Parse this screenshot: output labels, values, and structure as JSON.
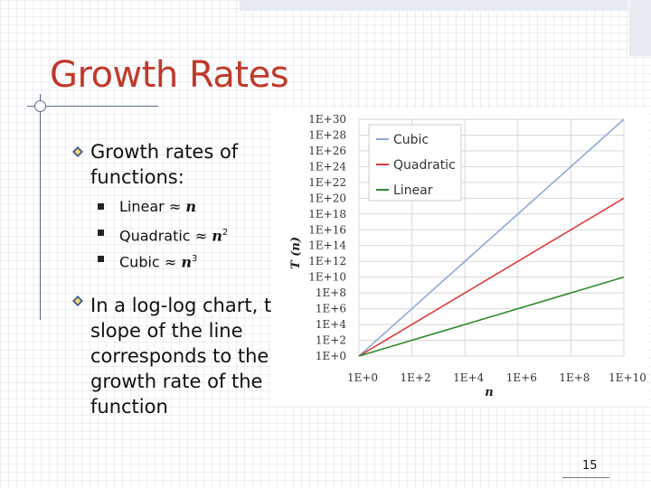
{
  "slide": {
    "title": "Growth Rates",
    "page_number": "15"
  },
  "bullets": [
    {
      "text_line1": "Growth rates of",
      "text_line2": "functions:"
    },
    {
      "text_lines": [
        "In a log-log chart, the",
        "slope of the line",
        "corresponds to the",
        "growth rate of the",
        "function"
      ]
    }
  ],
  "sub_items": [
    {
      "label": "Linear",
      "approx": "≈",
      "var": "n",
      "exp": ""
    },
    {
      "label": "Quadratic",
      "approx": "≈",
      "var": "n",
      "exp": "2"
    },
    {
      "label": "Cubic",
      "approx": "≈",
      "var": "n",
      "exp": "3"
    }
  ],
  "colors": {
    "title": "#c0392b",
    "cubic": "#8ea9db",
    "quadratic": "#e03a3a",
    "linear": "#2e8b2e",
    "bullet_icon": "#3c5a9a"
  },
  "chart_data": {
    "type": "line",
    "scale": "log-log",
    "xlabel": "n",
    "ylabel": "T (n)",
    "x_tick_labels": [
      "1E+0",
      "1E+2",
      "1E+4",
      "1E+6",
      "1E+8",
      "1E+10"
    ],
    "y_tick_labels": [
      "1E+0",
      "1E+2",
      "1E+4",
      "1E+6",
      "1E+8",
      "1E+10",
      "1E+12",
      "1E+14",
      "1E+16",
      "1E+18",
      "1E+20",
      "1E+22",
      "1E+24",
      "1E+26",
      "1E+28",
      "1E+30"
    ],
    "xlim": [
      1,
      10000000000
    ],
    "ylim": [
      1,
      1e+30
    ],
    "legend_position": "top-left",
    "grid": true,
    "series": [
      {
        "name": "Cubic",
        "x": [
          1,
          10000000000
        ],
        "y": [
          1,
          1e+30
        ],
        "color": "#8ea9db"
      },
      {
        "name": "Quadratic",
        "x": [
          1,
          10000000000
        ],
        "y": [
          1,
          1e+20
        ],
        "color": "#e03a3a"
      },
      {
        "name": "Linear",
        "x": [
          1,
          10000000000
        ],
        "y": [
          1,
          10000000000
        ],
        "color": "#2e8b2e"
      }
    ]
  }
}
